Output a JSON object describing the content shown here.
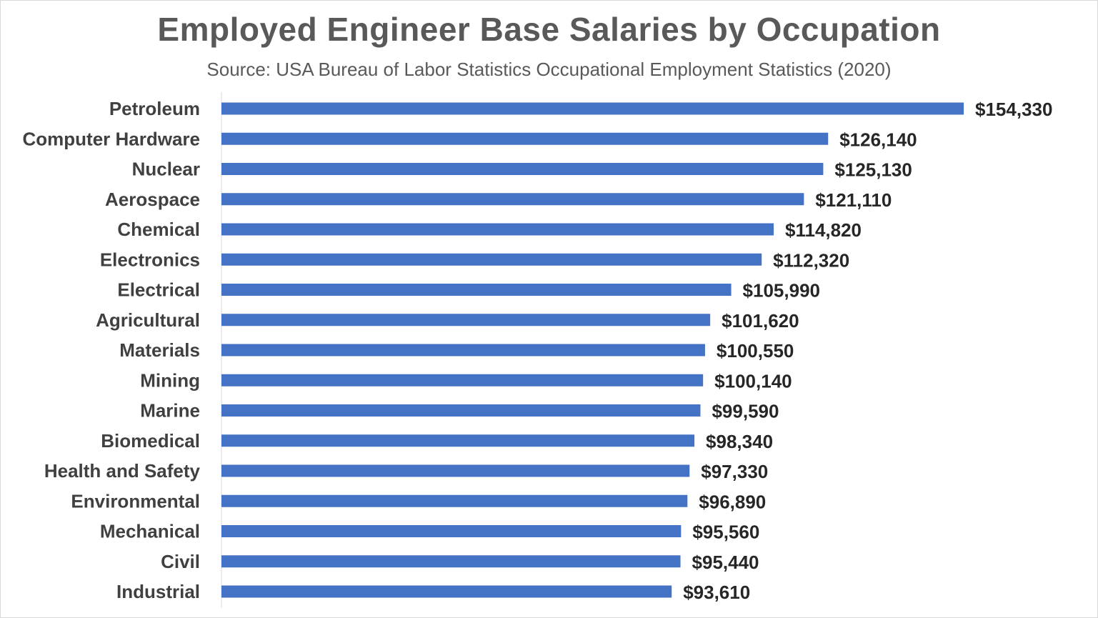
{
  "chart_data": {
    "type": "bar",
    "orientation": "horizontal",
    "title": "Employed Engineer Base Salaries by Occupation",
    "subtitle": "Source: USA Bureau of Labor Statistics Occupational Employment Statistics (2020)",
    "categories": [
      "Petroleum",
      "Computer Hardware",
      "Nuclear",
      "Aerospace",
      "Chemical",
      "Electronics",
      "Electrical",
      "Agricultural",
      "Materials",
      "Mining",
      "Marine",
      "Biomedical",
      "Health and Safety",
      "Environmental",
      "Mechanical",
      "Civil",
      "Industrial"
    ],
    "values": [
      154330,
      126140,
      125130,
      121110,
      114820,
      112320,
      105990,
      101620,
      100550,
      100140,
      99590,
      98340,
      97330,
      96890,
      95560,
      95440,
      93610
    ],
    "value_labels": [
      "$154,330",
      "$126,140",
      "$125,130",
      "$121,110",
      "$114,820",
      "$112,320",
      "$105,990",
      "$101,620",
      "$100,550",
      "$100,140",
      "$99,590",
      "$98,340",
      "$97,330",
      "$96,890",
      "$95,560",
      "$95,440",
      "$93,610"
    ],
    "xlim": [
      0,
      154330
    ],
    "bar_color": "#4472c4",
    "grid": false,
    "legend": "none"
  }
}
